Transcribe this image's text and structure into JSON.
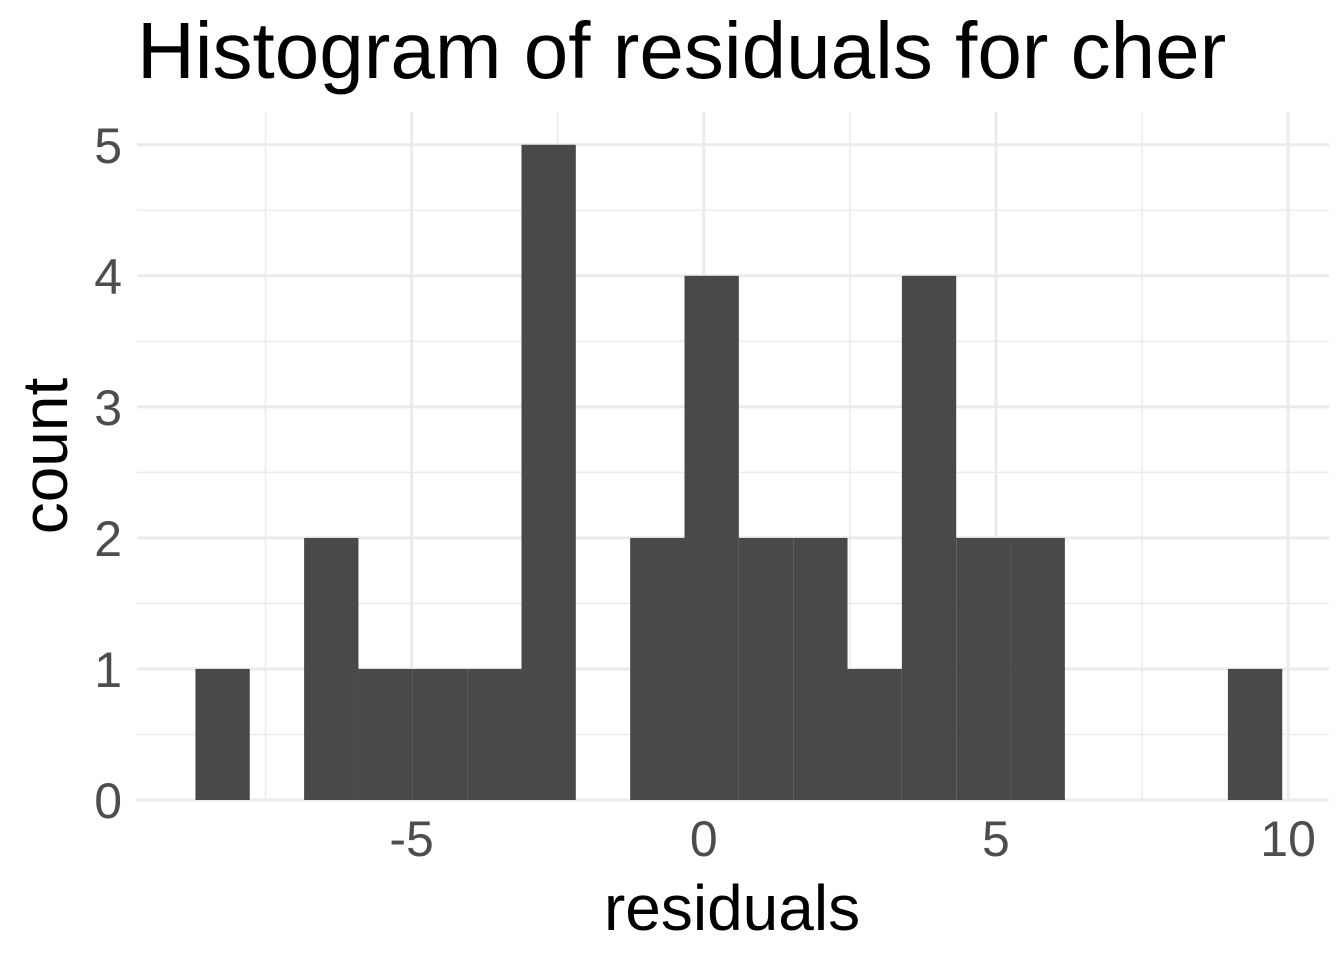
{
  "chart_data": {
    "type": "bar",
    "subtype": "histogram",
    "title": "Histogram of residuals for cher",
    "xlabel": "residuals",
    "ylabel": "count",
    "xlim": [
      -9.7,
      10.7
    ],
    "ylim": [
      0,
      5.25
    ],
    "x_ticks": [
      -5,
      0,
      5,
      10
    ],
    "x_tick_labels": [
      "-5",
      "0",
      "5",
      "10"
    ],
    "x_minor_ticks": [
      -7.5,
      -2.5,
      2.5,
      7.5
    ],
    "y_ticks": [
      0,
      1,
      2,
      3,
      4,
      5
    ],
    "y_tick_labels": [
      "0",
      "1",
      "2",
      "3",
      "4",
      "5"
    ],
    "y_minor_ticks": [
      0.5,
      1.5,
      2.5,
      3.5,
      4.5
    ],
    "grid": true,
    "bar_color": "#494949",
    "bins": [
      {
        "x0": -8.7,
        "x1": -7.77,
        "count": 1
      },
      {
        "x0": -7.77,
        "x1": -6.84,
        "count": 0
      },
      {
        "x0": -6.84,
        "x1": -5.91,
        "count": 2
      },
      {
        "x0": -5.91,
        "x1": -4.98,
        "count": 1
      },
      {
        "x0": -4.98,
        "x1": -4.05,
        "count": 1
      },
      {
        "x0": -4.05,
        "x1": -3.12,
        "count": 1
      },
      {
        "x0": -3.12,
        "x1": -2.19,
        "count": 5
      },
      {
        "x0": -2.19,
        "x1": -1.26,
        "count": 0
      },
      {
        "x0": -1.26,
        "x1": -0.33,
        "count": 2
      },
      {
        "x0": -0.33,
        "x1": 0.6,
        "count": 4
      },
      {
        "x0": 0.6,
        "x1": 1.53,
        "count": 2
      },
      {
        "x0": 1.53,
        "x1": 2.46,
        "count": 2
      },
      {
        "x0": 2.46,
        "x1": 3.39,
        "count": 1
      },
      {
        "x0": 3.39,
        "x1": 4.32,
        "count": 4
      },
      {
        "x0": 4.32,
        "x1": 5.25,
        "count": 2
      },
      {
        "x0": 5.25,
        "x1": 6.18,
        "count": 2
      },
      {
        "x0": 6.18,
        "x1": 7.11,
        "count": 0
      },
      {
        "x0": 7.11,
        "x1": 8.04,
        "count": 0
      },
      {
        "x0": 8.04,
        "x1": 8.97,
        "count": 0
      },
      {
        "x0": 8.97,
        "x1": 9.9,
        "count": 1
      }
    ]
  }
}
